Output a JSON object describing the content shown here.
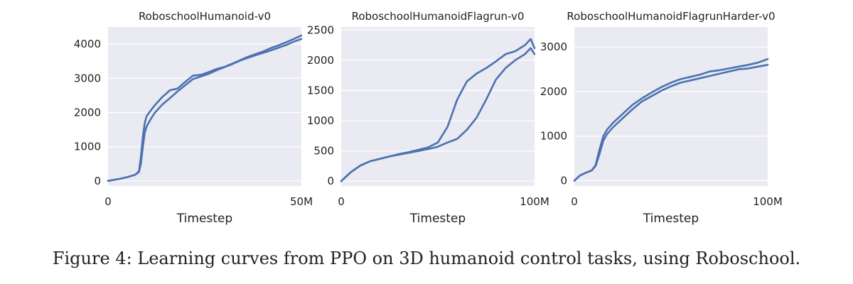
{
  "caption": "Figure 4: Learning curves from PPO on 3D humanoid control tasks, using Roboschool.",
  "colors": {
    "line": "#4c72b0",
    "panel_bg": "#eaeaf2",
    "grid": "#ffffff"
  },
  "chart_data": [
    {
      "type": "line",
      "title": "RoboschoolHumanoid-v0",
      "xlabel": "Timestep",
      "ylabel": "",
      "xlim": [
        0,
        50
      ],
      "ylim": [
        -150,
        4500
      ],
      "xticks": [
        0,
        50
      ],
      "xtick_labels": [
        "0",
        "50M"
      ],
      "yticks": [
        0,
        1000,
        2000,
        3000,
        4000
      ],
      "ytick_labels": [
        "0",
        "1000",
        "2000",
        "3000",
        "4000"
      ],
      "grid": true,
      "series": [
        {
          "x": [
            0,
            3,
            5,
            7,
            8,
            8.5,
            9,
            9.5,
            10,
            11,
            12,
            14,
            16,
            18,
            20,
            22,
            24,
            26,
            28,
            30,
            32,
            34,
            36,
            38,
            40,
            42,
            44,
            46,
            48,
            50
          ],
          "y": [
            0,
            60,
            110,
            180,
            260,
            500,
            1000,
            1420,
            1600,
            1800,
            1980,
            2230,
            2420,
            2620,
            2800,
            2980,
            3050,
            3130,
            3230,
            3320,
            3410,
            3510,
            3590,
            3670,
            3740,
            3810,
            3890,
            3970,
            4070,
            4150
          ]
        },
        {
          "x": [
            0,
            3,
            5,
            7,
            8,
            8.5,
            9,
            9.5,
            10,
            11,
            12,
            14,
            16,
            18,
            20,
            22,
            24,
            26,
            28,
            30,
            32,
            34,
            36,
            38,
            40,
            42,
            44,
            46,
            48,
            50
          ],
          "y": [
            0,
            60,
            110,
            180,
            280,
            700,
            1300,
            1700,
            1900,
            2050,
            2200,
            2450,
            2650,
            2700,
            2900,
            3080,
            3100,
            3180,
            3270,
            3330,
            3420,
            3520,
            3620,
            3700,
            3780,
            3880,
            3960,
            4050,
            4150,
            4250
          ]
        }
      ]
    },
    {
      "type": "line",
      "title": "RoboschoolHumanoidFlagrun-v0",
      "xlabel": "Timestep",
      "ylabel": "",
      "xlim": [
        0,
        100
      ],
      "ylim": [
        -80,
        2550
      ],
      "xticks": [
        0,
        100
      ],
      "xtick_labels": [
        "0",
        "100M"
      ],
      "yticks": [
        0,
        500,
        1000,
        1500,
        2000,
        2500
      ],
      "ytick_labels": [
        "0",
        "500",
        "1000",
        "1500",
        "2000",
        "2500"
      ],
      "grid": true,
      "series": [
        {
          "x": [
            0,
            5,
            10,
            15,
            20,
            25,
            30,
            35,
            40,
            45,
            50,
            55,
            60,
            65,
            70,
            75,
            80,
            85,
            90,
            95,
            98,
            100
          ],
          "y": [
            0,
            150,
            260,
            330,
            370,
            410,
            450,
            480,
            520,
            560,
            640,
            900,
            1350,
            1650,
            1780,
            1870,
            1980,
            2100,
            2150,
            2250,
            2350,
            2200
          ]
        },
        {
          "x": [
            0,
            5,
            10,
            15,
            20,
            25,
            30,
            35,
            40,
            45,
            50,
            55,
            60,
            65,
            70,
            75,
            80,
            85,
            90,
            95,
            98,
            100
          ],
          "y": [
            0,
            150,
            260,
            330,
            370,
            410,
            440,
            470,
            500,
            530,
            570,
            640,
            700,
            850,
            1050,
            1350,
            1680,
            1870,
            2000,
            2100,
            2200,
            2100
          ]
        }
      ]
    },
    {
      "type": "line",
      "title": "RoboschoolHumanoidFlagrunHarder-v0",
      "xlabel": "Timestep",
      "ylabel": "",
      "xlim": [
        0,
        100
      ],
      "ylim": [
        -120,
        3450
      ],
      "xticks": [
        0,
        100
      ],
      "xtick_labels": [
        "0",
        "100M"
      ],
      "yticks": [
        0,
        1000,
        2000,
        3000
      ],
      "ytick_labels": [
        "0",
        "1000",
        "2000",
        "3000"
      ],
      "grid": true,
      "series": [
        {
          "x": [
            0,
            3,
            6,
            9,
            11,
            13,
            15,
            17,
            20,
            25,
            30,
            35,
            40,
            45,
            50,
            55,
            60,
            65,
            70,
            75,
            80,
            85,
            90,
            95,
            100
          ],
          "y": [
            0,
            120,
            180,
            230,
            350,
            700,
            1000,
            1150,
            1300,
            1500,
            1700,
            1850,
            1980,
            2100,
            2200,
            2280,
            2330,
            2380,
            2450,
            2480,
            2520,
            2560,
            2600,
            2650,
            2730
          ]
        },
        {
          "x": [
            0,
            3,
            6,
            9,
            11,
            13,
            15,
            17,
            20,
            25,
            30,
            35,
            40,
            45,
            50,
            55,
            60,
            65,
            70,
            75,
            80,
            85,
            90,
            95,
            100
          ],
          "y": [
            0,
            120,
            180,
            230,
            330,
            600,
            900,
            1050,
            1200,
            1400,
            1600,
            1780,
            1900,
            2020,
            2120,
            2200,
            2250,
            2300,
            2350,
            2400,
            2450,
            2500,
            2520,
            2560,
            2600
          ]
        }
      ]
    }
  ]
}
